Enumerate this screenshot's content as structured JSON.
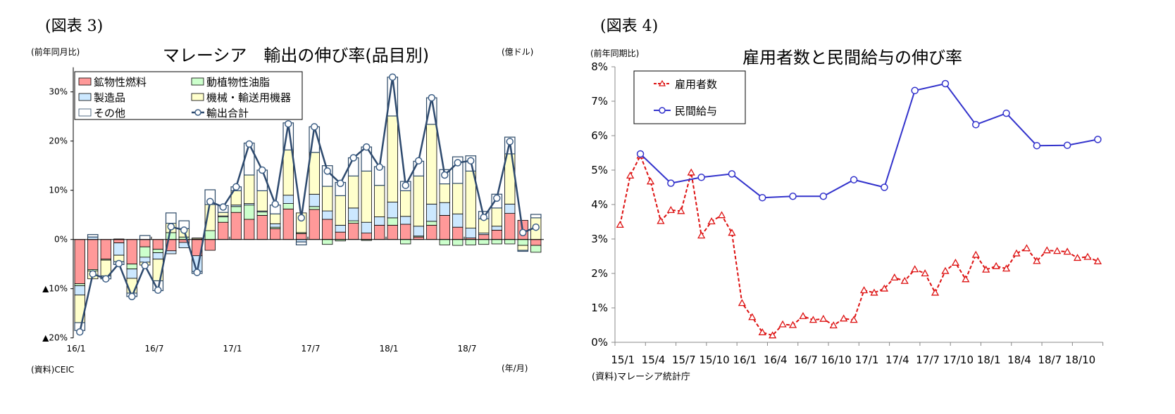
{
  "chart_data": [
    {
      "type": "bar",
      "stacked": true,
      "figure_label": "(図表 3)",
      "title": "マレーシア　輸出の伸び率(品目別)",
      "ylabel": "(前年同月比)",
      "unit_note": "(億ドル)",
      "xlabel": "(年/月)",
      "source": "(資料)CEIC",
      "ylim": [
        -20,
        35
      ],
      "yticks": [
        {
          "value": 30,
          "label": "30%"
        },
        {
          "value": 20,
          "label": "20%"
        },
        {
          "value": 10,
          "label": "10%"
        },
        {
          "value": 0,
          "label": "0%"
        },
        {
          "value": -10,
          "label": "▲10%"
        },
        {
          "value": -20,
          "label": "▲20%"
        }
      ],
      "grid": false,
      "legend_placement": "top-left",
      "categories": [
        "16/1",
        "16/2",
        "16/3",
        "16/4",
        "16/5",
        "16/6",
        "16/7",
        "16/8",
        "16/9",
        "16/10",
        "16/11",
        "16/12",
        "17/1",
        "17/2",
        "17/3",
        "17/4",
        "17/5",
        "17/6",
        "17/7",
        "17/8",
        "17/9",
        "17/10",
        "17/11",
        "17/12",
        "18/1",
        "18/2",
        "18/3",
        "18/4",
        "18/5",
        "18/6",
        "18/7",
        "18/8",
        "18/9",
        "18/10",
        "18/11",
        "18/12"
      ],
      "xtick_labels": [
        "16/1",
        "16/7",
        "17/1",
        "17/7",
        "18/1",
        "18/7"
      ],
      "series": [
        {
          "name": "鉱物性燃料",
          "color": "#ff9999",
          "values": [
            -9.0,
            -6.1,
            -4.0,
            -0.7,
            -5.0,
            -1.5,
            -2.0,
            -2.3,
            -0.6,
            -3.3,
            -2.2,
            3.5,
            5.5,
            4.1,
            4.9,
            2.2,
            6.2,
            1.2,
            6.1,
            4.1,
            1.5,
            3.3,
            1.3,
            2.9,
            2.9,
            3.1,
            0.5,
            2.9,
            4.9,
            2.5,
            0.3,
            1.0,
            1.9,
            5.3,
            3.9,
            -1.2
          ]
        },
        {
          "name": "動植物性油脂",
          "color": "#ccffcc",
          "values": [
            -0.4,
            -0.3,
            -0.2,
            0.1,
            -1.0,
            -2.1,
            -0.7,
            1.4,
            0.5,
            0.1,
            1.8,
            1.1,
            1.2,
            2.9,
            0.7,
            0.3,
            1.1,
            0.2,
            0.6,
            -1.0,
            -0.3,
            0.5,
            -0.2,
            0,
            1.5,
            -0.9,
            0.2,
            0.8,
            -1.1,
            -1.2,
            -1.1,
            -1.0,
            -0.9,
            -0.9,
            -1.2,
            -1.4
          ]
        },
        {
          "name": "製造品",
          "color": "#cce8ff",
          "values": [
            -1.9,
            0.5,
            0,
            -2.5,
            -1.9,
            -1.0,
            -1.3,
            -0.6,
            -1.1,
            -3.2,
            0,
            0.2,
            0.3,
            0.3,
            0.2,
            0.7,
            1.7,
            -0.5,
            2.5,
            1.7,
            1.4,
            2.6,
            2.2,
            1.7,
            3.2,
            1.6,
            2.0,
            3.5,
            2.6,
            2.7,
            2.0,
            0.3,
            0.8,
            1.9,
            0,
            0
          ]
        },
        {
          "name": "機械・輸送用機器",
          "color": "#ffffcc",
          "values": [
            -5.6,
            -1.6,
            -3.2,
            -1.3,
            -3.0,
            -0.6,
            -4.4,
            1.9,
            1.7,
            0.2,
            5.3,
            0.7,
            2.9,
            5.8,
            4.1,
            2.0,
            9.2,
            4.0,
            8.5,
            5.0,
            6.0,
            6.5,
            10.4,
            6.4,
            17.5,
            5.2,
            10.2,
            16.2,
            3.8,
            6.2,
            11.6,
            2.9,
            3.7,
            10.2,
            -1.0,
            4.4
          ]
        },
        {
          "name": "その他",
          "color": "#ffffff",
          "values": [
            -1.6,
            0.5,
            -0.6,
            -0.6,
            -0.7,
            0.8,
            -2.0,
            2.1,
            1.6,
            -0.4,
            3.0,
            1.4,
            0.8,
            6.5,
            4.2,
            1.8,
            5.5,
            -0.6,
            5.2,
            4.2,
            2.7,
            3.7,
            4.9,
            3.8,
            7.9,
            1.9,
            3.0,
            5.4,
            2.9,
            5.4,
            3.1,
            1.5,
            2.8,
            3.4,
            -0.2,
            0.7
          ]
        },
        {
          "name": "輸出合計",
          "type": "line",
          "color": "#2e4a6e",
          "values": [
            -18.8,
            -7.0,
            -8.0,
            -4.9,
            -11.6,
            -5.3,
            -10.3,
            2.6,
            1.9,
            -6.7,
            7.7,
            6.6,
            10.7,
            19.4,
            14.1,
            7.2,
            23.5,
            4.4,
            22.9,
            13.9,
            11.4,
            16.6,
            18.8,
            14.7,
            33.0,
            11.0,
            16.0,
            28.8,
            13.1,
            15.6,
            16.0,
            4.5,
            8.4,
            19.9,
            1.4,
            2.5
          ]
        }
      ]
    },
    {
      "type": "line",
      "figure_label": "(図表 4)",
      "title": "雇用者数と民間給与の伸び率",
      "ylabel": "(前年同期比)",
      "source": "(資料)マレーシア統計庁",
      "ylim": [
        0,
        8
      ],
      "yticks": [
        {
          "value": 8,
          "label": "8%"
        },
        {
          "value": 7,
          "label": "7%"
        },
        {
          "value": 6,
          "label": "6%"
        },
        {
          "value": 5,
          "label": "5%"
        },
        {
          "value": 4,
          "label": "4%"
        },
        {
          "value": 3,
          "label": "3%"
        },
        {
          "value": 2,
          "label": "2%"
        },
        {
          "value": 1,
          "label": "1%"
        },
        {
          "value": 0,
          "label": "0%"
        }
      ],
      "grid": false,
      "legend_placement": "top-left",
      "categories": [
        "15/1",
        "15/2",
        "15/3",
        "15/4",
        "15/5",
        "15/6",
        "15/7",
        "15/8",
        "15/9",
        "15/10",
        "15/11",
        "15/12",
        "16/1",
        "16/2",
        "16/3",
        "16/4",
        "16/5",
        "16/6",
        "16/7",
        "16/8",
        "16/9",
        "16/10",
        "16/11",
        "16/12",
        "17/1",
        "17/2",
        "17/3",
        "17/4",
        "17/5",
        "17/6",
        "17/7",
        "17/8",
        "17/9",
        "17/10",
        "17/11",
        "17/12",
        "18/1",
        "18/2",
        "18/3",
        "18/4",
        "18/5",
        "18/6",
        "18/7",
        "18/8",
        "18/9",
        "18/10",
        "18/11",
        "18/12"
      ],
      "xtick_labels": [
        "15/1",
        "15/4",
        "15/7",
        "15/10",
        "16/1",
        "16/4",
        "16/7",
        "16/10",
        "17/1",
        "17/4",
        "17/7",
        "17/10",
        "18/1",
        "18/4",
        "18/7",
        "18/10"
      ],
      "series": [
        {
          "name": "雇用者数",
          "color": "#dd1111",
          "style": "dashed",
          "marker": "triangle",
          "values": [
            3.41,
            4.84,
            5.42,
            4.67,
            3.52,
            3.84,
            3.81,
            4.93,
            3.1,
            3.51,
            3.69,
            3.18,
            1.14,
            0.73,
            0.29,
            0.2,
            0.52,
            0.5,
            0.76,
            0.65,
            0.68,
            0.49,
            0.69,
            0.65,
            1.51,
            1.44,
            1.56,
            1.88,
            1.78,
            2.12,
            2.0,
            1.44,
            2.07,
            2.31,
            1.83,
            2.54,
            2.11,
            2.21,
            2.14,
            2.58,
            2.73,
            2.36,
            2.67,
            2.65,
            2.63,
            2.45,
            2.48,
            2.35
          ]
        },
        {
          "name": "民間給与",
          "color": "#3333cc",
          "style": "solid",
          "marker": "circle",
          "values": [
            null,
            null,
            5.47,
            null,
            null,
            4.62,
            null,
            null,
            4.79,
            null,
            null,
            4.89,
            null,
            null,
            4.2,
            null,
            null,
            4.24,
            null,
            null,
            4.24,
            null,
            null,
            4.72,
            null,
            null,
            4.5,
            null,
            null,
            7.31,
            null,
            null,
            7.51,
            null,
            null,
            6.32,
            null,
            null,
            6.65,
            null,
            null,
            5.71,
            null,
            null,
            5.72,
            null,
            null,
            5.89
          ]
        }
      ]
    }
  ]
}
